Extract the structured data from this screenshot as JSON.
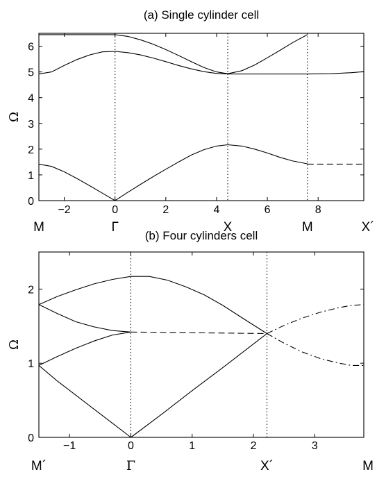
{
  "chart_data": [
    {
      "type": "line",
      "title": "(a) Single cylinder cell",
      "xlabel": "",
      "ylabel": "Ω",
      "xlim": [
        -3,
        9.8
      ],
      "ylim": [
        0,
        6.5
      ],
      "xticks": [
        -2,
        0,
        2,
        4,
        6,
        8
      ],
      "yticks": [
        0,
        1,
        2,
        3,
        4,
        5,
        6
      ],
      "symmetry_points": [
        {
          "label": "M",
          "x": -3
        },
        {
          "label": "Γ",
          "x": 0
        },
        {
          "label": "X",
          "x": 4.44
        },
        {
          "label": "M",
          "x": 7.58
        },
        {
          "label": "X´",
          "x": 9.8
        }
      ],
      "vertical_dotted_at": [
        0,
        4.44,
        7.58
      ],
      "grid": false,
      "series": [
        {
          "style": "solid",
          "points": [
            [
              -3,
              1.42
            ],
            [
              -2.5,
              1.33
            ],
            [
              -2,
              1.12
            ],
            [
              -1.5,
              0.86
            ],
            [
              -1,
              0.58
            ],
            [
              -0.5,
              0.29
            ],
            [
              0,
              0
            ],
            [
              0.5,
              0.32
            ],
            [
              1,
              0.63
            ],
            [
              1.5,
              0.93
            ],
            [
              2,
              1.22
            ],
            [
              2.5,
              1.5
            ],
            [
              3,
              1.77
            ],
            [
              3.5,
              1.98
            ],
            [
              4,
              2.12
            ],
            [
              4.44,
              2.17
            ],
            [
              5,
              2.12
            ],
            [
              5.5,
              2.0
            ],
            [
              6,
              1.85
            ],
            [
              6.5,
              1.68
            ],
            [
              7,
              1.54
            ],
            [
              7.58,
              1.43
            ]
          ]
        },
        {
          "style": "dashed",
          "points": [
            [
              7.58,
              1.42
            ],
            [
              9.8,
              1.42
            ]
          ]
        },
        {
          "style": "solid",
          "points": [
            [
              -3,
              4.92
            ],
            [
              -2.5,
              5.0
            ],
            [
              -2,
              5.25
            ],
            [
              -1.5,
              5.48
            ],
            [
              -1,
              5.66
            ],
            [
              -0.5,
              5.78
            ],
            [
              0,
              5.8
            ],
            [
              0.5,
              5.75
            ],
            [
              1,
              5.66
            ],
            [
              1.5,
              5.54
            ],
            [
              2,
              5.4
            ],
            [
              2.5,
              5.25
            ],
            [
              3,
              5.12
            ],
            [
              3.5,
              5.01
            ],
            [
              4,
              4.94
            ],
            [
              4.44,
              4.92
            ],
            [
              5,
              4.92
            ],
            [
              6,
              4.92
            ],
            [
              7,
              4.92
            ],
            [
              7.58,
              4.92
            ],
            [
              8.5,
              4.93
            ],
            [
              9.3,
              4.97
            ],
            [
              9.8,
              5.01
            ]
          ]
        },
        {
          "style": "solid",
          "points": [
            [
              -3,
              6.45
            ],
            [
              -2,
              6.45
            ],
            [
              -1,
              6.45
            ],
            [
              0,
              6.45
            ],
            [
              0.5,
              6.38
            ],
            [
              1,
              6.25
            ],
            [
              1.5,
              6.08
            ],
            [
              2,
              5.87
            ],
            [
              2.5,
              5.64
            ],
            [
              3,
              5.4
            ],
            [
              3.5,
              5.17
            ],
            [
              4,
              5.0
            ],
            [
              4.44,
              4.93
            ],
            [
              5,
              5.05
            ],
            [
              5.5,
              5.27
            ],
            [
              6,
              5.55
            ],
            [
              6.5,
              5.84
            ],
            [
              7,
              6.14
            ],
            [
              7.58,
              6.45
            ]
          ]
        }
      ]
    },
    {
      "type": "line",
      "title": "(b) Four cylinders cell",
      "xlabel": "",
      "ylabel": "Ω",
      "xlim": [
        -1.5,
        3.8
      ],
      "ylim": [
        0,
        2.5
      ],
      "xticks": [
        -1,
        0,
        1,
        2,
        3
      ],
      "yticks": [
        0,
        1,
        2
      ],
      "symmetry_points": [
        {
          "label": "M´",
          "x": -1.5
        },
        {
          "label": "Γ",
          "x": 0
        },
        {
          "label": "X´",
          "x": 2.22
        },
        {
          "label": "M",
          "x": 3.8
        }
      ],
      "vertical_dotted_at": [
        0,
        2.22
      ],
      "grid": false,
      "series": [
        {
          "style": "solid",
          "points": [
            [
              -1.5,
              1.79
            ],
            [
              -1.2,
              1.9
            ],
            [
              -0.9,
              1.99
            ],
            [
              -0.6,
              2.07
            ],
            [
              -0.3,
              2.13
            ],
            [
              0,
              2.17
            ],
            [
              0.3,
              2.17
            ],
            [
              0.6,
              2.12
            ],
            [
              0.9,
              2.03
            ],
            [
              1.2,
              1.92
            ],
            [
              1.5,
              1.78
            ],
            [
              1.8,
              1.62
            ],
            [
              2.22,
              1.4
            ]
          ]
        },
        {
          "style": "solid",
          "points": [
            [
              -1.5,
              1.79
            ],
            [
              -1.2,
              1.67
            ],
            [
              -0.9,
              1.56
            ],
            [
              -0.6,
              1.49
            ],
            [
              -0.3,
              1.44
            ],
            [
              0,
              1.42
            ]
          ]
        },
        {
          "style": "solid",
          "points": [
            [
              -1.5,
              0.97
            ],
            [
              -1.2,
              1.09
            ],
            [
              -0.9,
              1.2
            ],
            [
              -0.6,
              1.3
            ],
            [
              -0.3,
              1.38
            ],
            [
              0,
              1.42
            ]
          ]
        },
        {
          "style": "solid",
          "points": [
            [
              -1.5,
              0.97
            ],
            [
              -1.2,
              0.76
            ],
            [
              -0.9,
              0.57
            ],
            [
              -0.6,
              0.38
            ],
            [
              -0.3,
              0.19
            ],
            [
              0,
              0
            ]
          ]
        },
        {
          "style": "solid",
          "points": [
            [
              0,
              0
            ],
            [
              0.5,
              0.31
            ],
            [
              1,
              0.63
            ],
            [
              1.5,
              0.94
            ],
            [
              2,
              1.26
            ],
            [
              2.22,
              1.4
            ]
          ]
        },
        {
          "style": "dashed",
          "points": [
            [
              0,
              1.42
            ],
            [
              2.22,
              1.4
            ]
          ]
        },
        {
          "style": "dashdot",
          "points": [
            [
              2.22,
              1.4
            ],
            [
              2.5,
              1.51
            ],
            [
              2.8,
              1.61
            ],
            [
              3.1,
              1.69
            ],
            [
              3.4,
              1.75
            ],
            [
              3.6,
              1.78
            ],
            [
              3.8,
              1.79
            ]
          ]
        },
        {
          "style": "dashdot",
          "points": [
            [
              2.22,
              1.4
            ],
            [
              2.5,
              1.27
            ],
            [
              2.8,
              1.15
            ],
            [
              3.1,
              1.06
            ],
            [
              3.4,
              1.0
            ],
            [
              3.6,
              0.97
            ],
            [
              3.8,
              0.97
            ]
          ]
        }
      ]
    }
  ]
}
